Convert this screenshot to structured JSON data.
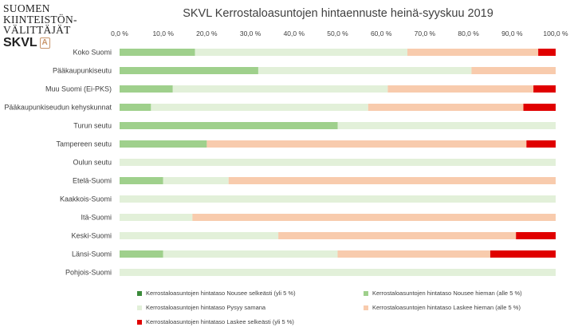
{
  "logo": {
    "lines": [
      "SUOMEN",
      "KIINTEISTÖN-",
      "VÄLITTÄJÄT"
    ],
    "brand": "SKVL",
    "badge": "A"
  },
  "chart_data": {
    "type": "bar",
    "stacked": "100%",
    "orientation": "horizontal",
    "title": "SKVL Kerrostaloasuntojen hintaennuste heinä-syyskuu 2019",
    "categories": [
      "Koko Suomi",
      "Pääkaupunkiseutu",
      "Muu Suomi (Ei-PKS)",
      "Pääkaupunkiseudun kehyskunnat",
      "Turun seutu",
      "Tampereen seutu",
      "Oulun seutu",
      "Etelä-Suomi",
      "Kaakkois-Suomi",
      "Itä-Suomi",
      "Keski-Suomi",
      "Länsi-Suomi",
      "Pohjois-Suomi"
    ],
    "x_ticks": [
      "0,0 %",
      "10,0 %",
      "20,0 %",
      "30,0 %",
      "40,0 %",
      "50,0 %",
      "60,0 %",
      "70,0 %",
      "80,0 %",
      "90,0 %",
      "100,0 %"
    ],
    "xlim": [
      0,
      100
    ],
    "grid": false,
    "legend_position": "bottom",
    "series": [
      {
        "name": "Kerrostaloasuntojen hintataso Nousee selkeästi (yli 5 %)",
        "color": "#3a8a3a",
        "values": [
          0,
          0,
          0,
          0,
          0,
          0,
          0,
          0,
          0,
          0,
          0,
          0,
          0
        ]
      },
      {
        "name": "Kerrostaloasuntojen hintataso Nousee hieman (alle 5 %)",
        "color": "#9fd08c",
        "values": [
          17.3,
          31.8,
          12.2,
          7.2,
          50.0,
          20.0,
          0,
          10.0,
          0,
          0,
          0,
          10.0,
          0
        ]
      },
      {
        "name": "Kerrostaloasuntojen hintataso Pysyy samana",
        "color": "#e2f0d9",
        "values": [
          48.7,
          48.9,
          49.3,
          49.8,
          50.0,
          0,
          100.0,
          15.0,
          100.0,
          16.7,
          36.4,
          40.0,
          100.0
        ]
      },
      {
        "name": "Kerrostaloasuntojen hintataso Laskee hieman (alle 5 %)",
        "color": "#f8cbad",
        "values": [
          30.0,
          19.3,
          33.4,
          35.6,
          0,
          73.3,
          0,
          75.0,
          0,
          83.3,
          54.5,
          35.0,
          0
        ]
      },
      {
        "name": "Kerrostaloasuntojen hintataso Laskee selkeästi (yli 5 %)",
        "color": "#e00000",
        "values": [
          4.0,
          0,
          5.1,
          7.4,
          0,
          6.7,
          0,
          0,
          0,
          0,
          9.1,
          15.0,
          0
        ]
      }
    ]
  }
}
